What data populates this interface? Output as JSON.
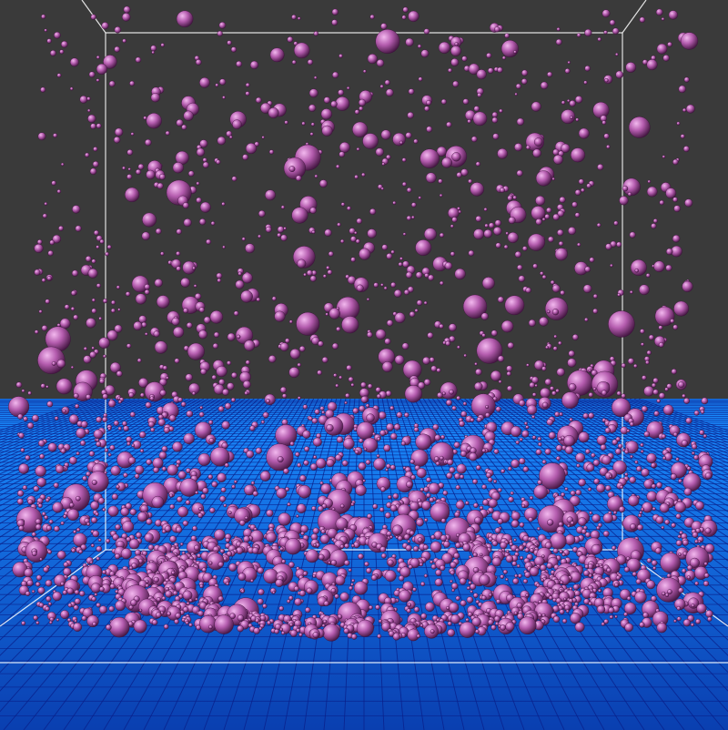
{
  "scene": {
    "colors": {
      "background": "#3a3a3a",
      "fluid_top": "#1a8cff",
      "fluid_bottom": "#0a3fb0",
      "grid_line": "#0a1f8a",
      "box_edge": "#ffffff",
      "particle_light": "#f2b8ee",
      "particle_mid": "#b45cae",
      "particle_dark": "#3a1038"
    },
    "particles": {
      "upper_region_count": 900,
      "fluid_region_count": 1800,
      "cluster_count": 700,
      "seed": 20240517
    }
  }
}
